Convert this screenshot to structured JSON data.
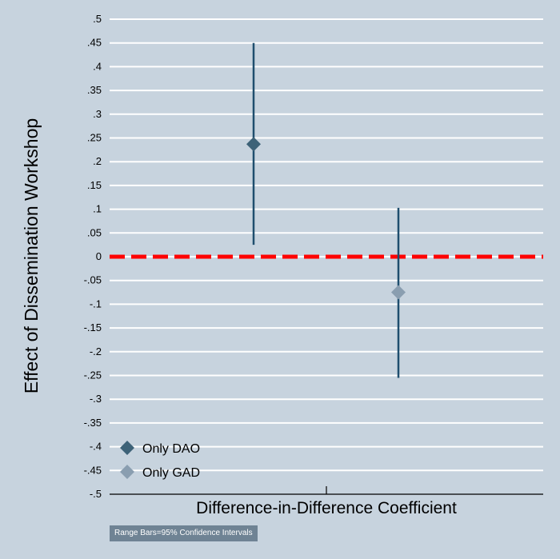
{
  "chart_data": {
    "type": "scatter",
    "ylabel": "Effect of Dissemination Workshop",
    "xlabel": "Difference-in-Difference Coefficient",
    "ylim": [
      -0.5,
      0.5
    ],
    "yticks": [
      {
        "v": 0.5,
        "label": ".5"
      },
      {
        "v": 0.45,
        "label": ".45"
      },
      {
        "v": 0.4,
        "label": ".4"
      },
      {
        "v": 0.35,
        "label": ".35"
      },
      {
        "v": 0.3,
        "label": ".3"
      },
      {
        "v": 0.25,
        "label": ".25"
      },
      {
        "v": 0.2,
        "label": ".2"
      },
      {
        "v": 0.15,
        "label": ".15"
      },
      {
        "v": 0.1,
        "label": ".1"
      },
      {
        "v": 0.05,
        "label": ".05"
      },
      {
        "v": 0,
        "label": "0"
      },
      {
        "v": -0.05,
        "label": "-.05"
      },
      {
        "v": -0.1,
        "label": "-.1"
      },
      {
        "v": -0.15,
        "label": "-.15"
      },
      {
        "v": -0.2,
        "label": "-.2"
      },
      {
        "v": -0.25,
        "label": "-.25"
      },
      {
        "v": -0.3,
        "label": "-.3"
      },
      {
        "v": -0.35,
        "label": "-.35"
      },
      {
        "v": -0.4,
        "label": "-.4"
      },
      {
        "v": -0.45,
        "label": "-.45"
      },
      {
        "v": -0.5,
        "label": "-.5"
      }
    ],
    "reference_line": {
      "y": 0,
      "color": "#ff0000",
      "style": "dashed"
    },
    "grid": true,
    "legend_position": "bottom-left",
    "series": [
      {
        "name": "Only DAO",
        "estimate": 0.237,
        "ci": [
          0.025,
          0.45
        ],
        "color": "#3d6278",
        "marker": "diamond"
      },
      {
        "name": "Only GAD",
        "estimate": -0.075,
        "ci": [
          -0.255,
          0.103
        ],
        "color": "#8a9eb0",
        "marker": "diamond"
      }
    ],
    "ci_line_color": "#1f4e6e",
    "note": "Range Bars=95% Confidence Intervals"
  }
}
